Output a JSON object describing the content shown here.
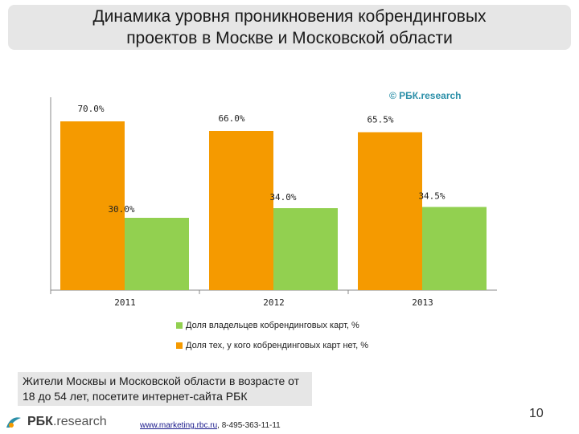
{
  "title": "Динамика уровня проникновения кобрендинговых проектов в Москве и Московской области",
  "copyright": "© РБК.research",
  "chart_data": {
    "type": "bar",
    "categories": [
      "2011",
      "2012",
      "2013"
    ],
    "series": [
      {
        "name": "Доля тех, у кого кобрендинговых карт нет, %",
        "values": [
          70.0,
          66.0,
          65.5
        ],
        "labels": [
          "70.0%",
          "66.0%",
          "65.5%"
        ],
        "color": "#f59a00"
      },
      {
        "name": "Доля владельцев кобрендинговых карт, %",
        "values": [
          30.0,
          34.0,
          34.5
        ],
        "labels": [
          "30.0%",
          "34.0%",
          "34.5%"
        ],
        "color": "#92d050"
      }
    ],
    "ylim": [
      0,
      80
    ],
    "legend": [
      {
        "label": "Доля владельцев кобрендинговых карт, %",
        "color": "#92d050"
      },
      {
        "label": "Доля тех, у кого кобрендинговых карт нет, %",
        "color": "#f59a00"
      }
    ]
  },
  "note": "Жители Москвы и Московской области в возрасте от 18 до 54 лет, посетите интернет-сайта РБК",
  "footer": {
    "link": "www.marketing.rbc.ru",
    "phone": ", 8-495-363-11-11"
  },
  "logo": {
    "brand": "РБК",
    "sub": ".research"
  },
  "page_number": "10"
}
